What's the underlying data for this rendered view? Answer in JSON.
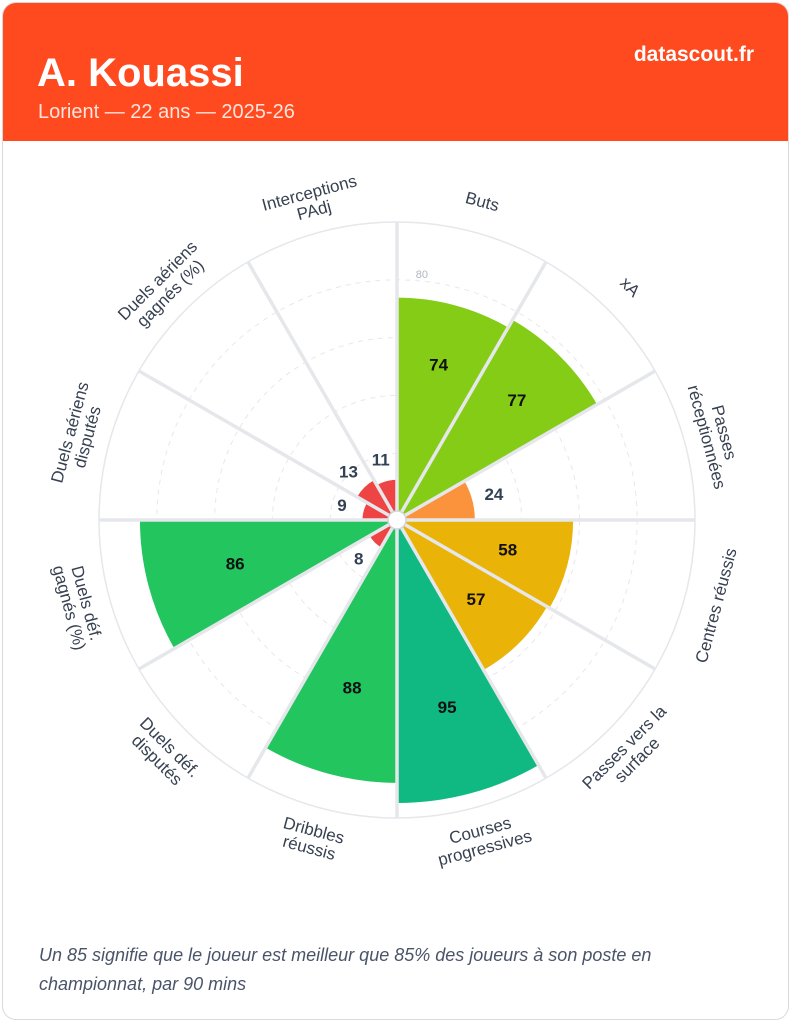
{
  "header": {
    "name": "A. Kouassi",
    "subtitle": "Lorient — 22 ans — 2025-26",
    "brand": "datascout.fr"
  },
  "footnote": "Un 85 signifie que le joueur est meilleur que 85% des joueurs à son poste en championnat, par 90 mins",
  "chart_data": {
    "type": "radar-bar",
    "max": 100,
    "ring_values": [
      20,
      40,
      60,
      80,
      100
    ],
    "ring_label": "80",
    "categories": [
      {
        "label": [
          "Buts"
        ],
        "value": 74,
        "color": "#84cc16"
      },
      {
        "label": [
          "xA"
        ],
        "value": 77,
        "color": "#84cc16"
      },
      {
        "label": [
          "Passes",
          "réceptionnées"
        ],
        "value": 24,
        "color": "#fb923c"
      },
      {
        "label": [
          "Centres réussis"
        ],
        "value": 58,
        "color": "#eab308"
      },
      {
        "label": [
          "Passes vers la",
          "surface"
        ],
        "value": 57,
        "color": "#eab308"
      },
      {
        "label": [
          "Courses",
          "progressives"
        ],
        "value": 95,
        "color": "#10b981"
      },
      {
        "label": [
          "Dribbles",
          "réussis"
        ],
        "value": 88,
        "color": "#22c55e"
      },
      {
        "label": [
          "Duels déf.",
          "disputés"
        ],
        "value": 8,
        "color": "#ef4444"
      },
      {
        "label": [
          "Duels déf.",
          "gagnés (%)"
        ],
        "value": 86,
        "color": "#22c55e"
      },
      {
        "label": [
          "Duels aériens",
          "disputés"
        ],
        "value": 9,
        "color": "#ef4444"
      },
      {
        "label": [
          "Duels aériens",
          "gagnés (%)"
        ],
        "value": 13,
        "color": "#ef4444"
      },
      {
        "label": [
          "Interceptions",
          "PAdj"
        ],
        "value": 11,
        "color": "#ef4444"
      }
    ]
  }
}
